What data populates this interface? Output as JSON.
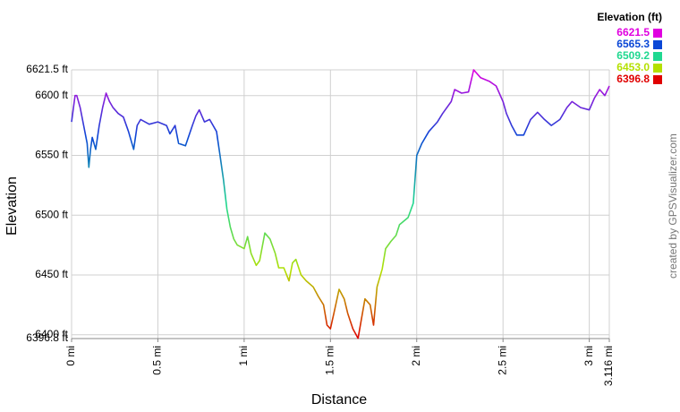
{
  "chart_data": {
    "type": "line",
    "x_label": "Distance",
    "y_label": "Elevation",
    "watermark": "created by GPSVisualizer.com",
    "legend": {
      "title": "Elevation (ft)",
      "values": [
        6621.5,
        6565.3,
        6509.2,
        6453,
        6396.8
      ],
      "value_labels": [
        "6621.5",
        "6565.3",
        "6509.2",
        "6453.0",
        "6396.8"
      ],
      "colors": [
        "#e000e0",
        "#0b47d6",
        "#20d890",
        "#b4e000",
        "#e00000"
      ]
    },
    "xlim": [
      0,
      3.116
    ],
    "ylim": [
      6396.8,
      6621.5
    ],
    "xticks": [
      {
        "value": 0,
        "label": "0 mi"
      },
      {
        "value": 0.5,
        "label": "0.5 mi"
      },
      {
        "value": 1,
        "label": "1 mi"
      },
      {
        "value": 1.5,
        "label": "1.5 mi"
      },
      {
        "value": 2,
        "label": "2 mi"
      },
      {
        "value": 2.5,
        "label": "2.5 mi"
      },
      {
        "value": 3,
        "label": "3 mi"
      },
      {
        "value": 3.116,
        "label": "3.116 mi"
      }
    ],
    "yticks": [
      {
        "value": 6396.8,
        "label": "6396.8 ft"
      },
      {
        "value": 6400,
        "label": "6400 ft"
      },
      {
        "value": 6450,
        "label": "6450 ft"
      },
      {
        "value": 6500,
        "label": "6500 ft"
      },
      {
        "value": 6550,
        "label": "6550 ft"
      },
      {
        "value": 6600,
        "label": "6600 ft"
      },
      {
        "value": 6621.5,
        "label": "6621.5 ft"
      }
    ],
    "grid": true,
    "x": [
      0,
      0.02,
      0.03,
      0.05,
      0.07,
      0.09,
      0.1,
      0.11,
      0.12,
      0.14,
      0.16,
      0.18,
      0.2,
      0.22,
      0.24,
      0.27,
      0.3,
      0.33,
      0.36,
      0.38,
      0.4,
      0.45,
      0.5,
      0.55,
      0.57,
      0.6,
      0.62,
      0.66,
      0.7,
      0.72,
      0.74,
      0.77,
      0.8,
      0.84,
      0.86,
      0.88,
      0.9,
      0.92,
      0.94,
      0.96,
      1.0,
      1.02,
      1.04,
      1.07,
      1.09,
      1.12,
      1.15,
      1.18,
      1.2,
      1.23,
      1.26,
      1.28,
      1.3,
      1.33,
      1.36,
      1.4,
      1.43,
      1.46,
      1.48,
      1.5,
      1.52,
      1.55,
      1.58,
      1.6,
      1.63,
      1.66,
      1.7,
      1.73,
      1.75,
      1.77,
      1.8,
      1.82,
      1.85,
      1.88,
      1.9,
      1.95,
      1.98,
      2.0,
      2.03,
      2.07,
      2.12,
      2.15,
      2.2,
      2.22,
      2.26,
      2.3,
      2.33,
      2.37,
      2.42,
      2.46,
      2.5,
      2.52,
      2.55,
      2.58,
      2.62,
      2.66,
      2.7,
      2.74,
      2.78,
      2.83,
      2.87,
      2.9,
      2.95,
      3.0,
      3.03,
      3.06,
      3.09,
      3.116
    ],
    "values": [
      6578,
      6600,
      6600,
      6590,
      6575,
      6560,
      6540,
      6555,
      6565,
      6555,
      6575,
      6590,
      6602,
      6595,
      6590,
      6585,
      6582,
      6570,
      6555,
      6575,
      6580,
      6576,
      6578,
      6575,
      6568,
      6575,
      6560,
      6558,
      6575,
      6583,
      6588,
      6578,
      6580,
      6570,
      6550,
      6530,
      6505,
      6490,
      6480,
      6475,
      6472,
      6482,
      6468,
      6458,
      6462,
      6485,
      6480,
      6468,
      6456,
      6456,
      6445,
      6460,
      6463,
      6450,
      6445,
      6440,
      6432,
      6425,
      6408,
      6405,
      6418,
      6438,
      6430,
      6418,
      6405,
      6397,
      6430,
      6425,
      6408,
      6440,
      6455,
      6472,
      6478,
      6483,
      6492,
      6498,
      6510,
      6550,
      6560,
      6570,
      6578,
      6585,
      6595,
      6605,
      6602,
      6603,
      6621.5,
      6615,
      6612,
      6608,
      6595,
      6585,
      6575,
      6567,
      6567,
      6580,
      6586,
      6580,
      6575,
      6580,
      6590,
      6595,
      6590,
      6588,
      6598,
      6605,
      6600,
      6608
    ]
  }
}
